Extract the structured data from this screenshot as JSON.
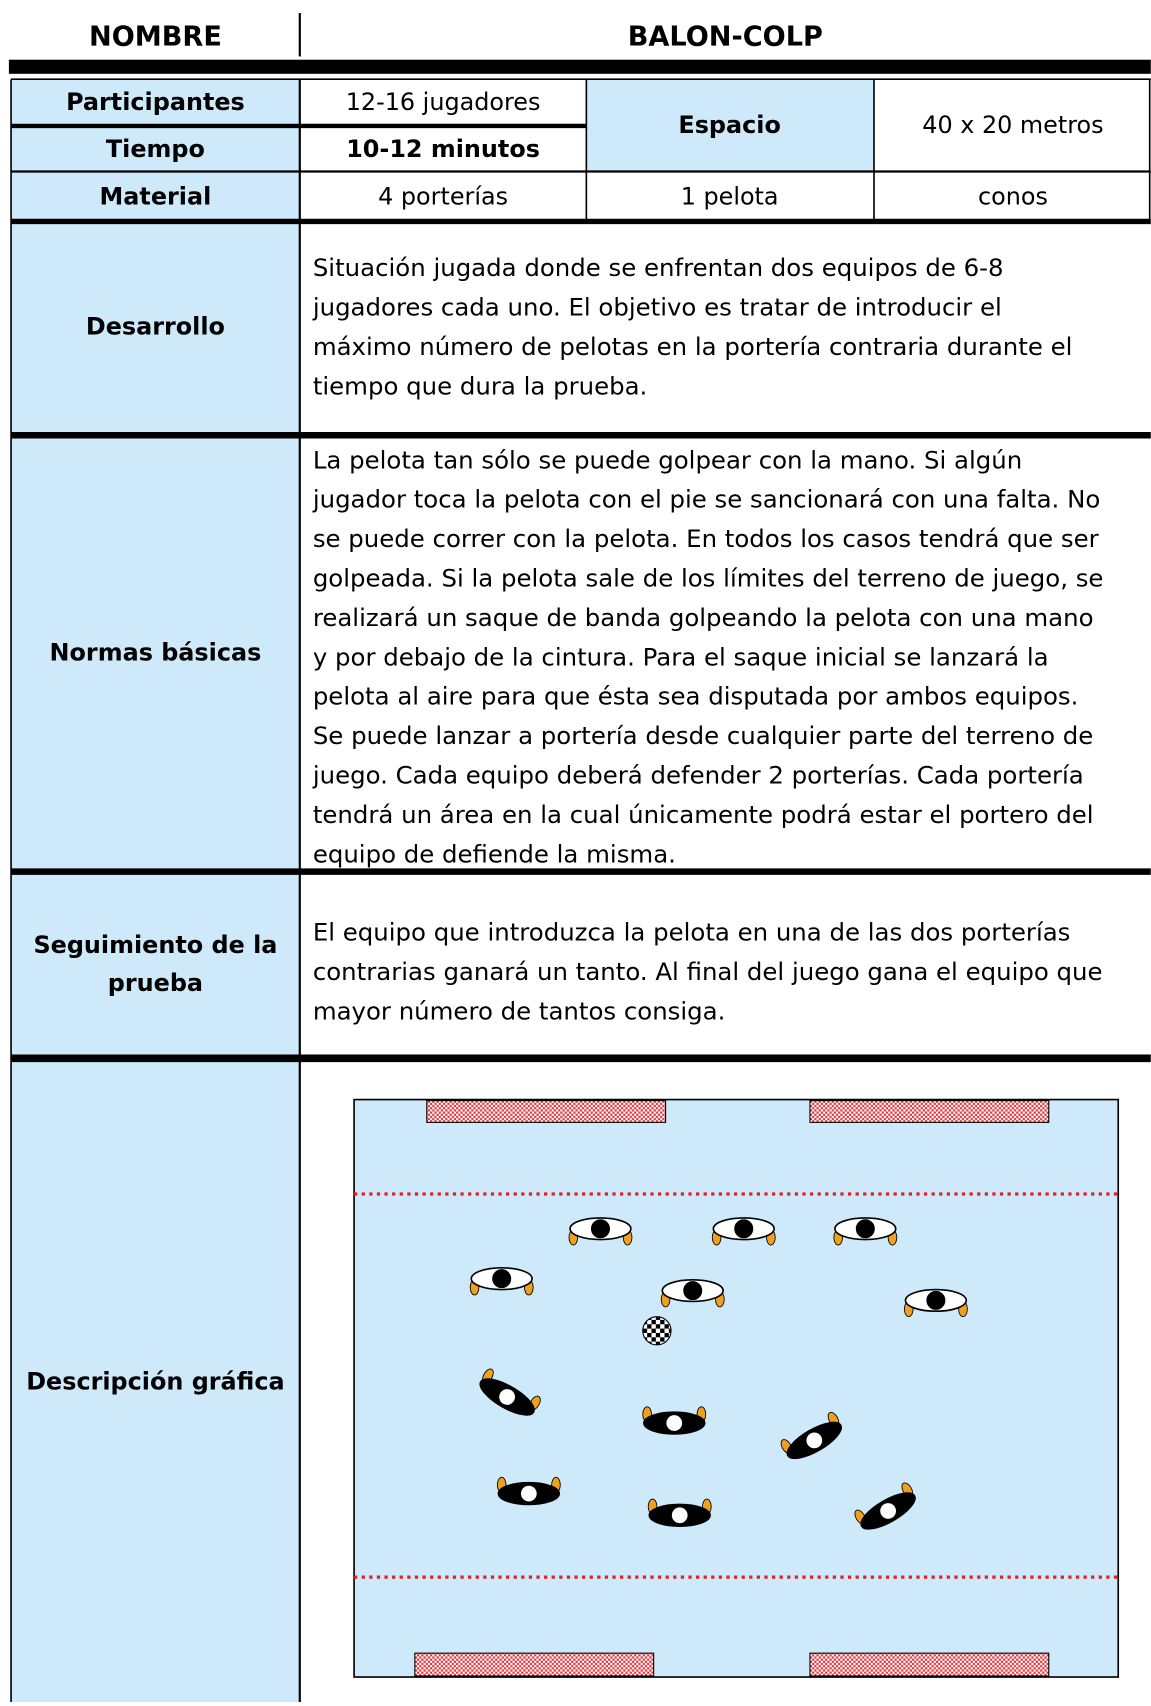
{
  "header": {
    "name_label": "NOMBRE",
    "name": "BALON-COLP"
  },
  "info": {
    "participantes_label": "Participantes",
    "participantes": "12-16 jugadores",
    "tiempo_label": "Tiempo",
    "tiempo": "10-12 minutos",
    "espacio_label": "Espacio",
    "espacio": "40 x 20 metros",
    "material_label": "Material",
    "material": [
      "4 porterías",
      "1 pelota",
      "conos"
    ]
  },
  "sections": [
    {
      "label": [
        "Desarrollo"
      ],
      "lines": [
        "Situación jugada donde se enfrentan dos equipos de 6-8",
        "jugadores cada uno. El objetivo es tratar de introducir el",
        "máximo número de pelotas en la portería contraria durante el",
        "tiempo que dura la prueba."
      ]
    },
    {
      "label": [
        "Normas básicas"
      ],
      "lines": [
        "La pelota tan sólo se puede golpear con la mano. Si algún",
        "jugador toca la pelota con el pie se sancionará con una falta. No",
        "se puede correr con la pelota. En todos los casos tendrá que ser",
        "golpeada. Si la pelota sale de los límites del terreno de juego, se",
        "realizará un saque de banda golpeando la pelota con una mano",
        "y por debajo de la cintura. Para el saque inicial se lanzará la",
        "pelota al aire para que ésta sea disputada por ambos equipos.",
        "Se puede lanzar a portería desde cualquier parte del terreno de",
        "juego. Cada equipo deberá defender 2 porterías. Cada portería",
        "tendrá un área en la cual únicamente podrá estar el portero del",
        "equipo de defiende la misma."
      ]
    },
    {
      "label": [
        "Seguimiento de la",
        "prueba"
      ],
      "lines": [
        "El equipo que introduzca la pelota en una de las dos  porterías",
        "contrarias ganará un tanto. Al final del juego gana el equipo que",
        "mayor número de tantos consiga."
      ]
    },
    {
      "label": [
        "Descripción gráfica"
      ],
      "lines": []
    }
  ]
}
